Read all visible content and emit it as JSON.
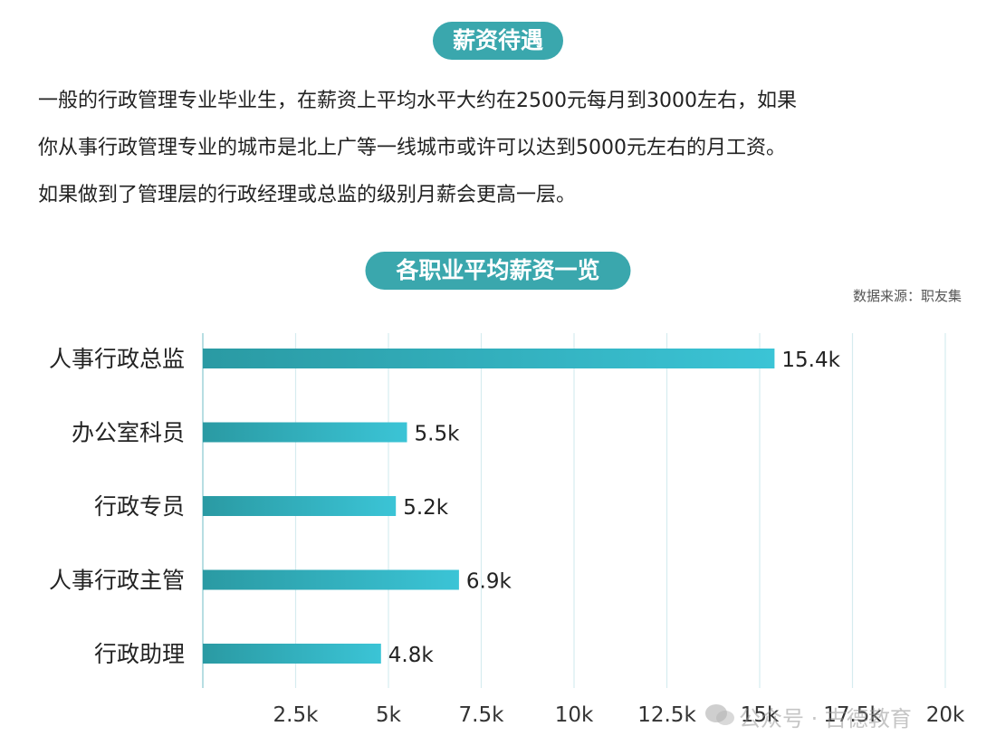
{
  "section1": {
    "title": "薪资待遇"
  },
  "paragraph": {
    "lines": [
      "一般的行政管理专业毕业生，在薪资上平均水平大约在2500元每月到3000左右，如果",
      "你从事行政管理专业的城市是北上广等一线城市或许可以达到5000元左右的月工资。",
      "如果做到了管理层的行政经理或总监的级别月薪会更高一层。"
    ]
  },
  "section2": {
    "title": "各职业平均薪资一览",
    "source": "数据来源：职友集"
  },
  "colors": {
    "accent": "#3aa7ad",
    "bar_start": "#2a9aa3",
    "bar_end": "#3bc4d6",
    "grid": "#d6ecef"
  },
  "chart_data": {
    "type": "bar",
    "orientation": "horizontal",
    "categories": [
      "人事行政总监",
      "办公室科员",
      "行政专员",
      "人事行政主管",
      "行政助理"
    ],
    "values": [
      15.4,
      5.5,
      5.2,
      6.9,
      4.8
    ],
    "value_labels": [
      "15.4k",
      "5.5k",
      "5.2k",
      "6.9k",
      "4.8k"
    ],
    "x_ticks": [
      2.5,
      5,
      7.5,
      10,
      12.5,
      15,
      17.5,
      20
    ],
    "x_tick_labels": [
      "2.5k",
      "5k",
      "7.5k",
      "10k",
      "12.5k",
      "15k",
      "17.5k",
      "20k"
    ],
    "xlim": [
      0,
      20
    ],
    "unit": "k",
    "grid": true,
    "legend": "none"
  },
  "watermark": {
    "text": "公众号 · 古德教育"
  }
}
